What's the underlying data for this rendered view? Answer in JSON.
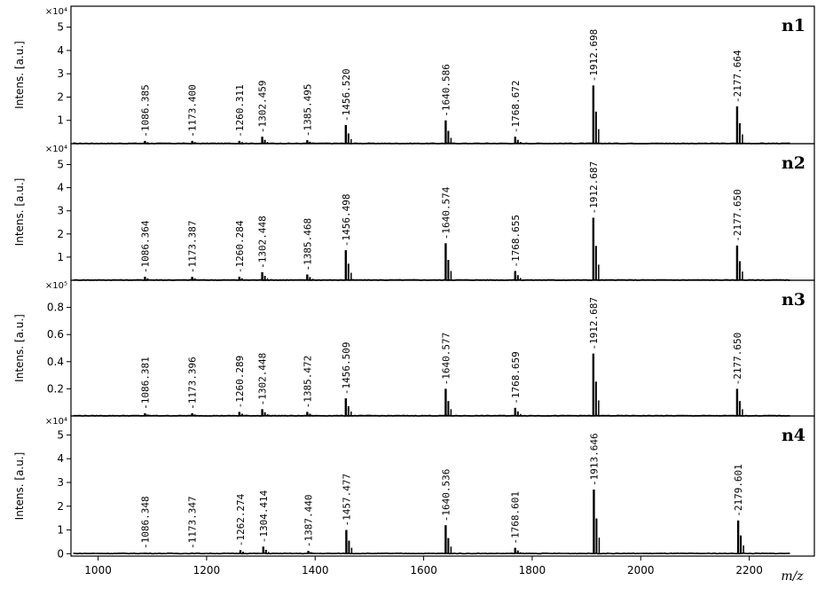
{
  "chart_data": {
    "type": "line",
    "subtype": "stacked mass spectra",
    "xlabel": "m/z",
    "xlim": [
      950,
      2320
    ],
    "xticks": [
      1000,
      1200,
      1400,
      1600,
      1800,
      2000,
      2200
    ],
    "grid": false,
    "legend": "none",
    "colors": {
      "trace": "#000000",
      "frame": "#000000",
      "background": "#ffffff"
    },
    "panels": [
      {
        "name": "n1",
        "ylabel": "Intens. [a.u.]",
        "scale": "×10⁴",
        "ylim": [
          0,
          5.9
        ],
        "yticks": [
          1,
          2,
          3,
          4,
          5
        ],
        "peaks": [
          {
            "mz": 1086.385,
            "label": "1086.385",
            "intensity": 0.12
          },
          {
            "mz": 1173.4,
            "label": "1173.400",
            "intensity": 0.12
          },
          {
            "mz": 1260.311,
            "label": "1260.311",
            "intensity": 0.12
          },
          {
            "mz": 1302.459,
            "label": "1302.459",
            "intensity": 0.3
          },
          {
            "mz": 1385.495,
            "label": "1385.495",
            "intensity": 0.15
          },
          {
            "mz": 1456.52,
            "label": "1456.520",
            "intensity": 0.8
          },
          {
            "mz": 1640.586,
            "label": "1640.586",
            "intensity": 1.0
          },
          {
            "mz": 1768.672,
            "label": "1768.672",
            "intensity": 0.3
          },
          {
            "mz": 1912.698,
            "label": "1912.698",
            "intensity": 2.5
          },
          {
            "mz": 2177.664,
            "label": "2177.664",
            "intensity": 1.6
          }
        ]
      },
      {
        "name": "n2",
        "ylabel": "Intens. [a.u.]",
        "scale": "×10⁴",
        "ylim": [
          0,
          5.9
        ],
        "yticks": [
          1,
          2,
          3,
          4,
          5
        ],
        "peaks": [
          {
            "mz": 1086.364,
            "label": "1086.364",
            "intensity": 0.15
          },
          {
            "mz": 1173.387,
            "label": "1173.387",
            "intensity": 0.15
          },
          {
            "mz": 1260.284,
            "label": "1260.284",
            "intensity": 0.15
          },
          {
            "mz": 1302.448,
            "label": "1302.448",
            "intensity": 0.35
          },
          {
            "mz": 1385.468,
            "label": "1385.468",
            "intensity": 0.25
          },
          {
            "mz": 1456.498,
            "label": "1456.498",
            "intensity": 1.3
          },
          {
            "mz": 1640.574,
            "label": "1640.574",
            "intensity": 1.6
          },
          {
            "mz": 1768.655,
            "label": "1768.655",
            "intensity": 0.4
          },
          {
            "mz": 1912.687,
            "label": "1912.687",
            "intensity": 2.7
          },
          {
            "mz": 2177.65,
            "label": "2177.650",
            "intensity": 1.5
          }
        ]
      },
      {
        "name": "n3",
        "ylabel": "Intens. [a.u.]",
        "scale": "×10⁵",
        "ylim": [
          0,
          1.0
        ],
        "yticks": [
          0.2,
          0.4,
          0.6,
          0.8
        ],
        "peaks": [
          {
            "mz": 1086.381,
            "label": "1086.381",
            "intensity": 0.02
          },
          {
            "mz": 1173.396,
            "label": "1173.396",
            "intensity": 0.02
          },
          {
            "mz": 1260.289,
            "label": "1260.289",
            "intensity": 0.03
          },
          {
            "mz": 1302.448,
            "label": "1302.448",
            "intensity": 0.05
          },
          {
            "mz": 1385.472,
            "label": "1385.472",
            "intensity": 0.03
          },
          {
            "mz": 1456.509,
            "label": "1456.509",
            "intensity": 0.13
          },
          {
            "mz": 1640.577,
            "label": "1640.577",
            "intensity": 0.2
          },
          {
            "mz": 1768.659,
            "label": "1768.659",
            "intensity": 0.06
          },
          {
            "mz": 1912.687,
            "label": "1912.687",
            "intensity": 0.46
          },
          {
            "mz": 2177.65,
            "label": "2177.650",
            "intensity": 0.2
          }
        ]
      },
      {
        "name": "n4",
        "ylabel": "Intens. [a.u.]",
        "scale": "×10⁴",
        "ylim": [
          -0.1,
          5.8
        ],
        "yticks": [
          0,
          1,
          2,
          3,
          4,
          5
        ],
        "peaks": [
          {
            "mz": 1086.348,
            "label": "1086.348",
            "intensity": 0.05
          },
          {
            "mz": 1173.347,
            "label": "1173.347",
            "intensity": 0.05
          },
          {
            "mz": 1262.274,
            "label": "1262.274",
            "intensity": 0.15
          },
          {
            "mz": 1304.414,
            "label": "1304.414",
            "intensity": 0.3
          },
          {
            "mz": 1387.44,
            "label": "1387.440",
            "intensity": 0.12
          },
          {
            "mz": 1457.477,
            "label": "1457.477",
            "intensity": 1.0
          },
          {
            "mz": 1640.536,
            "label": "1640.536",
            "intensity": 1.2
          },
          {
            "mz": 1768.601,
            "label": "1768.601",
            "intensity": 0.25
          },
          {
            "mz": 1913.646,
            "label": "1913.646",
            "intensity": 2.7
          },
          {
            "mz": 2179.601,
            "label": "2179.601",
            "intensity": 1.4
          }
        ]
      }
    ]
  }
}
